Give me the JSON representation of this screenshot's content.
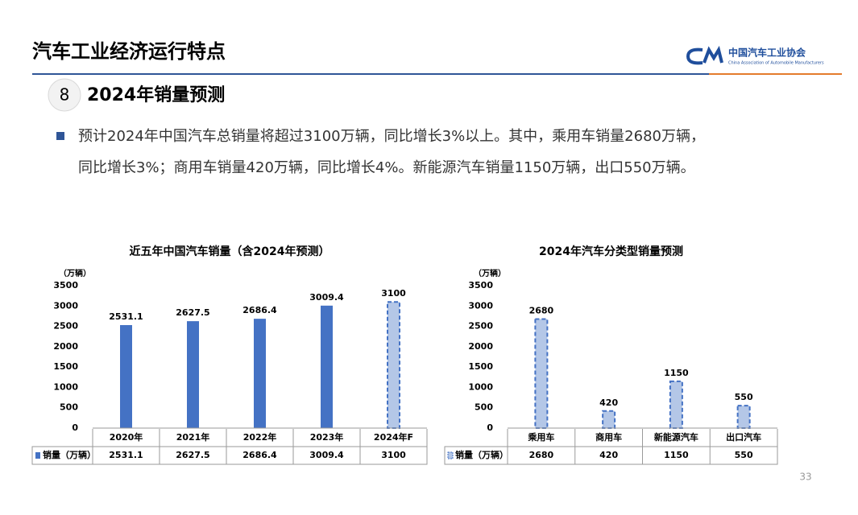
{
  "header": {
    "title": "汽车工业经济运行特点",
    "logo_name": "中国汽车工业协会",
    "logo_english": "China Association of Automobile Manufacturers"
  },
  "section": {
    "number": "8",
    "title": "2024年销量预测"
  },
  "bullet_lines": [
    "预计2024年中国汽车总销量将超过3100万辆，同比增长3%以上。其中，乘用车销量2680万辆，",
    "同比增长3%；商用车销量420万辆，同比增长4%。新能源汽车销量1150万辆，出口550万辆。"
  ],
  "page_number": "33",
  "chart_data": [
    {
      "type": "bar",
      "title": "近五年中国汽车销量（含2024年预测）",
      "y_label": "（万辆）",
      "categories": [
        "2020年",
        "2021年",
        "2022年",
        "2023年",
        "2024年F"
      ],
      "series": [
        {
          "name": "销量（万辆）",
          "color": "#4472c4",
          "values": [
            2531.1,
            2627.5,
            2686.4,
            3009.4,
            3100
          ],
          "bar_styles": [
            "solid",
            "solid",
            "solid",
            "solid",
            "dashed"
          ]
        }
      ],
      "ylim": [
        0,
        3500
      ],
      "yticks": [
        0,
        500,
        1000,
        1500,
        2000,
        2500,
        3000,
        3500
      ],
      "grid": false,
      "data_table": true
    },
    {
      "type": "bar",
      "title": "2024年汽车分类型销量预测",
      "y_label": "（万辆）",
      "categories": [
        "乘用车",
        "商用车",
        "新能源汽车",
        "出口汽车"
      ],
      "series": [
        {
          "name": "销量（万辆）",
          "color": "#4472c4",
          "values": [
            2680,
            420,
            1150,
            550
          ],
          "bar_styles": [
            "dashed",
            "dashed",
            "dashed",
            "dashed"
          ]
        }
      ],
      "ylim": [
        0,
        3500
      ],
      "yticks": [
        0,
        500,
        1000,
        1500,
        2000,
        2500,
        3000,
        3500
      ],
      "grid": false,
      "data_table": true
    }
  ]
}
